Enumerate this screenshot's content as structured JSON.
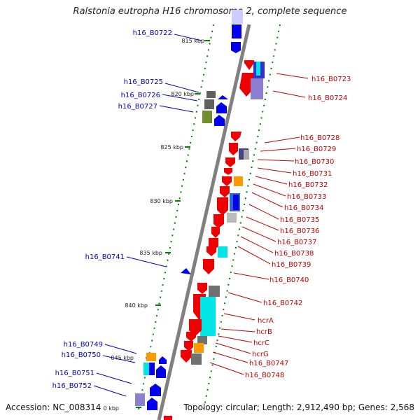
{
  "title": "Ralstonia eutropha H16 chromosome 2, complete sequence",
  "footer": {
    "accession": "Accession: NC_008314",
    "info": "Topology: circular; Length: 2,912,490 bp; Genes: 2,568"
  },
  "ticks": [
    "815 kbp",
    "820 kbp",
    "825 kbp",
    "830 kbp",
    "835 kbp",
    "840 kbp",
    "845 kbp",
    "0 kbp"
  ],
  "left_genes": [
    "h16_B0722",
    "h16_B0725",
    "h16_B0726",
    "h16_B0727",
    "h16_B0741",
    "h16_B0749",
    "h16_B0750",
    "h16_B0751",
    "h16_B0752"
  ],
  "right_genes": [
    "h16_B0723",
    "h16_B0724",
    "h16_B0728",
    "h16_B0729",
    "h16_B0730",
    "h16_B0731",
    "h16_B0732",
    "h16_B0733",
    "h16_B0734",
    "h16_B0735",
    "h16_B0736",
    "h16_B0737",
    "h16_B0738",
    "h16_B0739",
    "h16_B0740",
    "h16_B0742",
    "hcrA",
    "hcrB",
    "hcrC",
    "hcrG",
    "h16_B0747",
    "h16_B0748"
  ],
  "colors": {
    "forward": "#ee0000",
    "reverse": "#0000ee",
    "backbone": "#808080",
    "tick": "#008000",
    "cog_cyan": "#00e5e5",
    "cog_orange": "#ff9900",
    "cog_gray": "#707070",
    "cog_lavender": "#8c7fd0",
    "cog_olive": "#6f8f2a"
  }
}
